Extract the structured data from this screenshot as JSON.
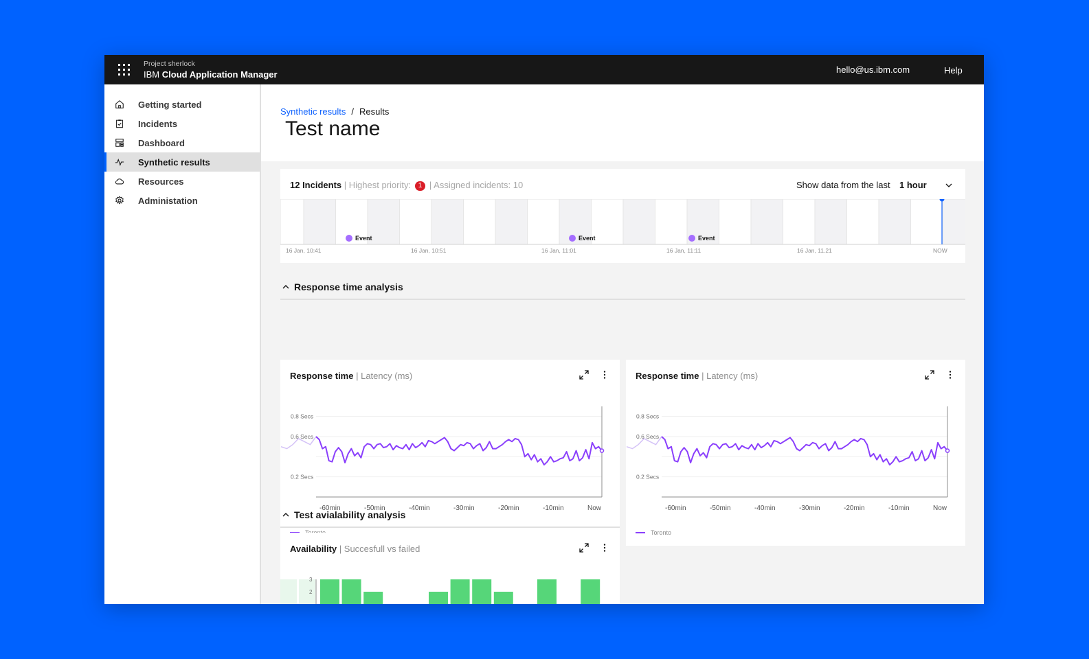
{
  "header": {
    "project": "Project sherlock",
    "app_prefix": "IBM",
    "app_name": "Cloud Application Manager",
    "email": "hello@us.ibm.com",
    "help": "Help"
  },
  "sidebar": {
    "items": [
      {
        "label": "Getting started",
        "icon": "home-icon"
      },
      {
        "label": "Incidents",
        "icon": "clipboard-icon"
      },
      {
        "label": "Dashboard",
        "icon": "dashboard-icon"
      },
      {
        "label": "Synthetic results",
        "icon": "activity-icon",
        "active": true
      },
      {
        "label": "Resources",
        "icon": "cloud-icon"
      },
      {
        "label": "Administation",
        "icon": "settings-icon"
      }
    ]
  },
  "breadcrumb": {
    "parent": "Synthetic results",
    "sep": "/",
    "current": "Results"
  },
  "page_title": "Test name",
  "incidents": {
    "count_label": "12 Incidents",
    "highest_priority_label": "| Highest priority:",
    "priority_value": "1",
    "assigned_label": "| Assigned incidents: 10",
    "show_data_label": "Show data from the last",
    "range_value": "1 hour",
    "event_label": "Event",
    "time_labels": [
      "16 Jan, 10:41",
      "16 Jan, 10:51",
      "16 Jan, 11:01",
      "16 Jan, 11:11",
      "16 Jan, 11.21",
      "NOW"
    ]
  },
  "sections": {
    "response": "Response time analysis",
    "availability": "Test avialability analysis"
  },
  "response_chart": {
    "title": "Response time",
    "subtitle": "| Latency (ms)",
    "legend": "Toronto",
    "y_ticks": [
      "0.8 Secs",
      "0.6 Secs",
      "0.2 Secs"
    ],
    "x_ticks": [
      "-60min",
      "-50min",
      "-40min",
      "-30min",
      "-20min",
      "-10min",
      "Now"
    ]
  },
  "availability_chart": {
    "title": "Availability",
    "subtitle": "| Succesfull vs failed",
    "y_ticks": [
      "3",
      "2"
    ]
  },
  "colors": {
    "accent": "#0f62fe",
    "series": "#8a3ffc",
    "bar": "#56d679",
    "bar_faint": "#e8f7ec"
  },
  "chart_data": [
    {
      "type": "line",
      "title": "Response time",
      "ylabel": "Latency (ms)",
      "ylim": [
        0,
        0.9
      ],
      "series": [
        {
          "name": "Toronto",
          "values": [
            0.6,
            0.57,
            0.48,
            0.5,
            0.36,
            0.35,
            0.45,
            0.49,
            0.45,
            0.34,
            0.43,
            0.48,
            0.41,
            0.44,
            0.39,
            0.5,
            0.53,
            0.52,
            0.48,
            0.52,
            0.53,
            0.49,
            0.5,
            0.53,
            0.47,
            0.51,
            0.49,
            0.48,
            0.52,
            0.47,
            0.53,
            0.49,
            0.51,
            0.54,
            0.5,
            0.56,
            0.55,
            0.53,
            0.55,
            0.57,
            0.59,
            0.55,
            0.48,
            0.46,
            0.49,
            0.52,
            0.51,
            0.54,
            0.53,
            0.48,
            0.51,
            0.53,
            0.46,
            0.49,
            0.55,
            0.48,
            0.48,
            0.5,
            0.52,
            0.55,
            0.57,
            0.55,
            0.58,
            0.57,
            0.52,
            0.4,
            0.43,
            0.37,
            0.42,
            0.35,
            0.38,
            0.32,
            0.35,
            0.4,
            0.35,
            0.36,
            0.38,
            0.39,
            0.45,
            0.36,
            0.38,
            0.46,
            0.36,
            0.39,
            0.47,
            0.38,
            0.54,
            0.48,
            0.5,
            0.46
          ]
        }
      ]
    },
    {
      "type": "line",
      "title": "Response time",
      "ylabel": "Latency (ms)",
      "ylim": [
        0,
        0.9
      ],
      "series": [
        {
          "name": "Toronto",
          "values": [
            0.6,
            0.57,
            0.48,
            0.5,
            0.36,
            0.35,
            0.45,
            0.49,
            0.45,
            0.34,
            0.43,
            0.48,
            0.41,
            0.44,
            0.39,
            0.5,
            0.53,
            0.52,
            0.48,
            0.52,
            0.53,
            0.49,
            0.5,
            0.53,
            0.47,
            0.51,
            0.49,
            0.48,
            0.52,
            0.47,
            0.53,
            0.49,
            0.51,
            0.54,
            0.5,
            0.56,
            0.55,
            0.53,
            0.55,
            0.57,
            0.59,
            0.55,
            0.48,
            0.46,
            0.49,
            0.52,
            0.51,
            0.54,
            0.53,
            0.48,
            0.51,
            0.53,
            0.46,
            0.49,
            0.55,
            0.48,
            0.48,
            0.5,
            0.52,
            0.55,
            0.57,
            0.55,
            0.58,
            0.57,
            0.52,
            0.4,
            0.43,
            0.37,
            0.42,
            0.35,
            0.38,
            0.32,
            0.35,
            0.4,
            0.35,
            0.36,
            0.38,
            0.39,
            0.45,
            0.36,
            0.38,
            0.46,
            0.36,
            0.39,
            0.47,
            0.38,
            0.54,
            0.48,
            0.5,
            0.46
          ]
        }
      ]
    },
    {
      "type": "bar",
      "title": "Availability",
      "ylabel": "Succesfull vs failed",
      "ylim": [
        0,
        3
      ],
      "values": [
        3,
        3,
        2,
        0,
        0,
        2,
        3,
        3,
        2,
        0,
        3,
        0,
        3
      ]
    }
  ]
}
